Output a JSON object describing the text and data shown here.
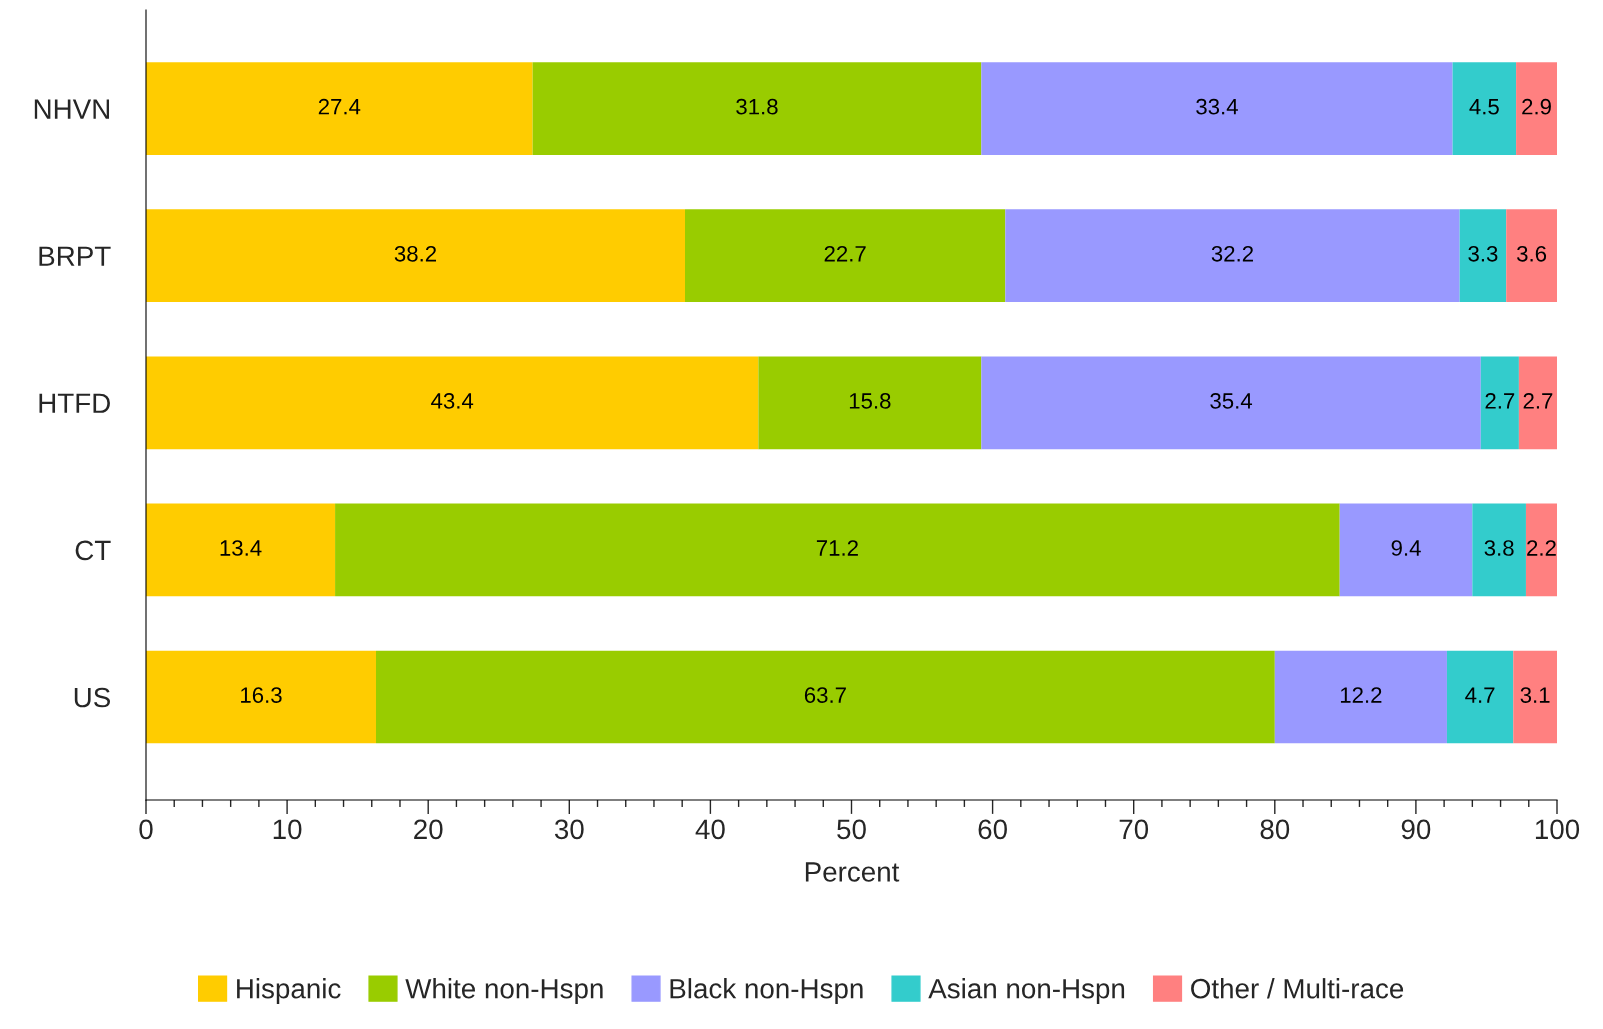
{
  "chart_data": {
    "type": "bar",
    "orientation": "horizontal",
    "stacked": true,
    "xlabel": "Percent",
    "categories": [
      "NHVN",
      "BRPT",
      "HTFD",
      "CT",
      "US"
    ],
    "series": [
      {
        "name": "Hispanic",
        "color": "#ffcc00",
        "values": [
          27.4,
          38.2,
          43.4,
          13.4,
          16.3
        ]
      },
      {
        "name": "White non-Hspn",
        "color": "#99cc00",
        "values": [
          31.8,
          22.7,
          15.8,
          71.2,
          63.7
        ]
      },
      {
        "name": "Black non-Hspn",
        "color": "#9999ff",
        "values": [
          33.4,
          32.2,
          35.4,
          9.4,
          12.2
        ]
      },
      {
        "name": "Asian non-Hspn",
        "color": "#33cccc",
        "values": [
          4.5,
          3.3,
          2.7,
          3.8,
          4.7
        ]
      },
      {
        "name": "Other / Multi-race",
        "color": "#ff8080",
        "values": [
          2.9,
          3.6,
          2.7,
          2.2,
          3.1
        ]
      }
    ],
    "xlim": [
      0,
      100
    ],
    "xticks": [
      0,
      {
        "value": 2,
        "label": null
      },
      {
        "value": 4,
        "label": null
      },
      {
        "value": 6,
        "label": null
      },
      {
        "value": 8,
        "label": null
      },
      10,
      {
        "value": 12,
        "label": null
      },
      {
        "value": 14,
        "label": null
      },
      {
        "value": 16,
        "label": null
      },
      {
        "value": 18,
        "label": null
      },
      20,
      {
        "value": 22,
        "label": null
      },
      {
        "value": 24,
        "label": null
      },
      {
        "value": 26,
        "label": null
      },
      {
        "value": 28,
        "label": null
      },
      30,
      {
        "value": 32,
        "label": null
      },
      {
        "value": 34,
        "label": null
      },
      {
        "value": 36,
        "label": null
      },
      {
        "value": 38,
        "label": null
      },
      40,
      {
        "value": 42,
        "label": null
      },
      {
        "value": 44,
        "label": null
      },
      {
        "value": 46,
        "label": null
      },
      {
        "value": 48,
        "label": null
      },
      50,
      {
        "value": 52,
        "label": null
      },
      {
        "value": 54,
        "label": null
      },
      {
        "value": 56,
        "label": null
      },
      {
        "value": 58,
        "label": null
      },
      60,
      {
        "value": 62,
        "label": null
      },
      {
        "value": 64,
        "label": null
      },
      {
        "value": 66,
        "label": null
      },
      {
        "value": 68,
        "label": null
      },
      70,
      {
        "value": 72,
        "label": null
      },
      {
        "value": 74,
        "label": null
      },
      {
        "value": 76,
        "label": null
      },
      {
        "value": 78,
        "label": null
      },
      80,
      {
        "value": 82,
        "label": null
      },
      {
        "value": 84,
        "label": null
      },
      {
        "value": 86,
        "label": null
      },
      {
        "value": 88,
        "label": null
      },
      90,
      {
        "value": 92,
        "label": null
      },
      {
        "value": 94,
        "label": null
      },
      {
        "value": 96,
        "label": null
      },
      {
        "value": 98,
        "label": null
      },
      100
    ],
    "data_labels": true,
    "grid": false,
    "legend": "bottom"
  }
}
